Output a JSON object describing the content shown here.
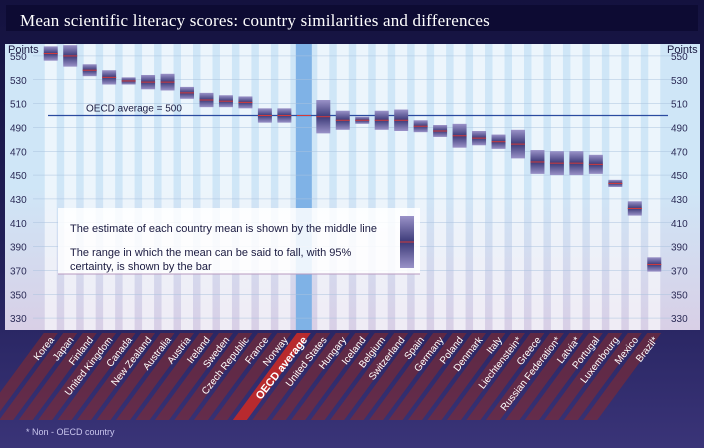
{
  "title": "Mean scientific literacy scores: country similarities and differences",
  "footnote": "* Non - OECD country",
  "colors": {
    "frame": "#1c1a4d",
    "plot_bg": "#cfe6f7",
    "column_bg": "#ffffff",
    "oecd_column": "#7fb2e6",
    "lower_band": "#d8cfe6",
    "bar_dark": "#3c3a78",
    "mean_line": "#d23b3b",
    "oecd_line": "#2b4ba0",
    "label_band": "#8a2a2a"
  },
  "chart_data": {
    "type": "bar",
    "title": "Mean scientific literacy scores: country similarities and differences",
    "ylabel": "Points",
    "ylim": [
      320,
      560
    ],
    "yticks": [
      330,
      350,
      370,
      390,
      410,
      430,
      450,
      470,
      490,
      510,
      530,
      550
    ],
    "grid": true,
    "reference_line": {
      "value": 500,
      "label": "OECD average = 500"
    },
    "legend_text": [
      "The estimate of each country mean is shown by the middle line",
      "The range in which the mean can be said to fall, with 95%",
      "certainty, is shown by the bar"
    ],
    "categories": [
      "Korea",
      "Japan",
      "Finland",
      "United Kingdom",
      "Canada",
      "New Zealand",
      "Australia",
      "Austria",
      "Ireland",
      "Sweden",
      "Czech Republic",
      "France",
      "Norway",
      "OECD average",
      "United States",
      "Hungary",
      "Iceland",
      "Belgium",
      "Switzerland",
      "Spain",
      "Germany",
      "Poland",
      "Denmark",
      "Italy",
      "Liechtenstein*",
      "Greece",
      "Russian Federation*",
      "Latvia*",
      "Portugal",
      "Luxembourg",
      "Mexico",
      "Brazil*"
    ],
    "series": [
      {
        "values": [
          552,
          550,
          538,
          532,
          529,
          528,
          528,
          519,
          513,
          512,
          511,
          500,
          500,
          500,
          499,
          496,
          496,
          496,
          496,
          491,
          487,
          483,
          481,
          478,
          476,
          461,
          460,
          460,
          459,
          443,
          422,
          375
        ]
      }
    ],
    "ci_low": [
      546,
      541,
      533,
      526,
      526,
      522,
      521,
      514,
      507,
      507,
      506,
      494,
      494,
      499,
      485,
      488,
      493,
      488,
      487,
      486,
      482,
      473,
      475,
      472,
      464,
      451,
      450,
      450,
      451,
      440,
      416,
      369
    ],
    "ci_high": [
      558,
      559,
      543,
      538,
      532,
      534,
      535,
      524,
      519,
      517,
      516,
      506,
      506,
      501,
      513,
      504,
      499,
      504,
      505,
      496,
      492,
      493,
      487,
      484,
      488,
      471,
      470,
      470,
      467,
      446,
      428,
      381
    ]
  }
}
